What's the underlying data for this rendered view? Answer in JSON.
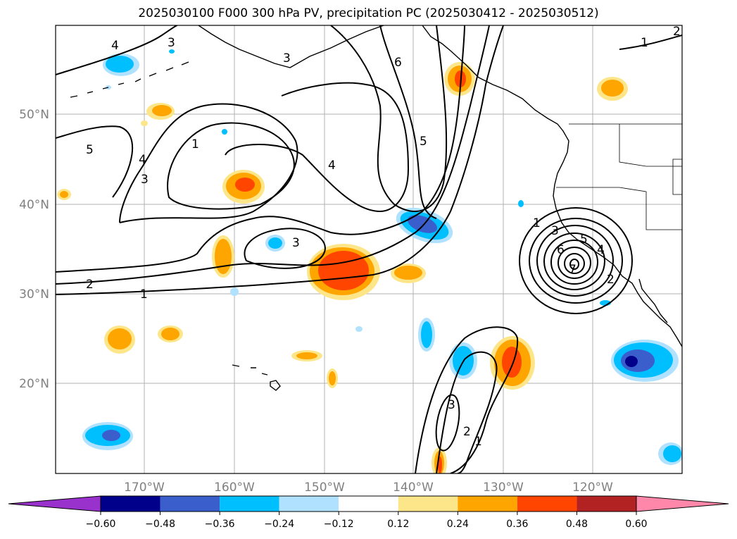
{
  "title": "2025030100 F000 300 hPa PV, precipitation PC (2025030412 - 2025030512)",
  "lon_ticks": [
    "170°W",
    "160°W",
    "150°W",
    "140°W",
    "130°W",
    "120°W"
  ],
  "lat_ticks": [
    "50°N",
    "40°N",
    "30°N",
    "20°N"
  ],
  "colorbar": {
    "tick_labels": [
      "−0.60",
      "−0.48",
      "−0.36",
      "−0.24",
      "−0.12",
      "0.12",
      "0.24",
      "0.36",
      "0.48",
      "0.60"
    ],
    "colors": [
      "#9932cc",
      "#00008b",
      "#3a5fcd",
      "#00bfff",
      "#b0e2ff",
      "#ffffff",
      "#fde68a",
      "#ffa500",
      "#ff4500",
      "#b22222",
      "#ff88aa"
    ]
  },
  "contour_labels": [
    "4",
    "3",
    "3",
    "6",
    "5",
    "4",
    "1",
    "4",
    "3",
    "5",
    "2",
    "1",
    "3",
    "1",
    "3",
    "6",
    "5",
    "4",
    "7",
    "2",
    "3",
    "2",
    "1",
    "1",
    "2"
  ]
}
